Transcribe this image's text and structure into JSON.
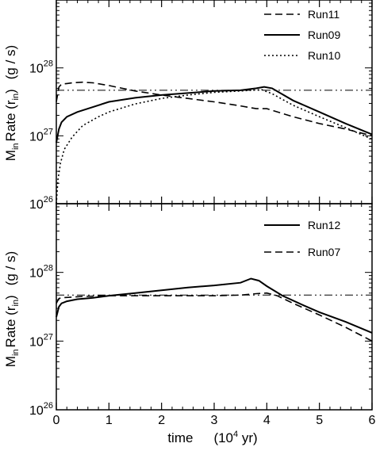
{
  "chart_data": [
    {
      "type": "line",
      "title": "",
      "xlabel": "",
      "ylabel": "M_in Rate (r_in)   (g / s)",
      "xlim": [
        0,
        6
      ],
      "ylim_log10": [
        26,
        29
      ],
      "y_scale": "log",
      "grid": false,
      "legend_position": "top-right",
      "y_ticks": [
        {
          "base": "10",
          "exp": "26"
        },
        {
          "base": "10",
          "exp": "27"
        },
        {
          "base": "10",
          "exp": "28"
        }
      ],
      "reference_line": {
        "style": "dash-dot",
        "value_log10": 27.67
      },
      "series": [
        {
          "name": "Run11",
          "style": "dashed",
          "points_log10": [
            [
              0,
              27.5
            ],
            [
              0.05,
              27.72
            ],
            [
              0.1,
              27.76
            ],
            [
              0.2,
              27.77
            ],
            [
              0.3,
              27.78
            ],
            [
              0.5,
              27.79
            ],
            [
              0.7,
              27.78
            ],
            [
              1.0,
              27.74
            ],
            [
              1.5,
              27.66
            ],
            [
              2.0,
              27.6
            ],
            [
              2.5,
              27.55
            ],
            [
              3.0,
              27.5
            ],
            [
              3.5,
              27.44
            ],
            [
              3.8,
              27.4
            ],
            [
              4.0,
              27.4
            ],
            [
              4.5,
              27.28
            ],
            [
              5.0,
              27.18
            ],
            [
              5.5,
              27.1
            ],
            [
              6.0,
              27.0
            ]
          ]
        },
        {
          "name": "Run09",
          "style": "solid",
          "points_log10": [
            [
              0,
              26.9
            ],
            [
              0.05,
              27.1
            ],
            [
              0.1,
              27.2
            ],
            [
              0.2,
              27.28
            ],
            [
              0.4,
              27.35
            ],
            [
              0.6,
              27.4
            ],
            [
              1.0,
              27.5
            ],
            [
              1.5,
              27.56
            ],
            [
              2.0,
              27.6
            ],
            [
              2.5,
              27.63
            ],
            [
              3.0,
              27.66
            ],
            [
              3.5,
              27.67
            ],
            [
              3.8,
              27.7
            ],
            [
              3.95,
              27.72
            ],
            [
              4.1,
              27.7
            ],
            [
              4.5,
              27.52
            ],
            [
              5.0,
              27.35
            ],
            [
              5.5,
              27.18
            ],
            [
              6.0,
              27.02
            ]
          ]
        },
        {
          "name": "Run10",
          "style": "dotted",
          "points_log10": [
            [
              0,
              26.0
            ],
            [
              0.03,
              26.35
            ],
            [
              0.08,
              26.6
            ],
            [
              0.15,
              26.8
            ],
            [
              0.3,
              26.98
            ],
            [
              0.5,
              27.15
            ],
            [
              0.8,
              27.28
            ],
            [
              1.0,
              27.35
            ],
            [
              1.5,
              27.47
            ],
            [
              2.0,
              27.55
            ],
            [
              2.5,
              27.6
            ],
            [
              3.0,
              27.64
            ],
            [
              3.5,
              27.66
            ],
            [
              3.9,
              27.68
            ],
            [
              4.1,
              27.62
            ],
            [
              4.5,
              27.45
            ],
            [
              5.0,
              27.28
            ],
            [
              5.5,
              27.12
            ],
            [
              6.0,
              26.95
            ]
          ]
        }
      ]
    },
    {
      "type": "line",
      "title": "",
      "xlabel": "time     (10^4 yr)",
      "ylabel": "M_in Rate (r_in)   (g / s)",
      "xlim": [
        0,
        6
      ],
      "ylim_log10": [
        26,
        29
      ],
      "y_scale": "log",
      "grid": false,
      "legend_position": "top-right",
      "x_ticks": [
        "0",
        "1",
        "2",
        "3",
        "4",
        "5",
        "6"
      ],
      "y_ticks": [
        {
          "base": "10",
          "exp": "26"
        },
        {
          "base": "10",
          "exp": "27"
        },
        {
          "base": "10",
          "exp": "28"
        }
      ],
      "reference_line": {
        "style": "dash-dot",
        "value_log10": 27.67
      },
      "series": [
        {
          "name": "Run12",
          "style": "solid",
          "points_log10": [
            [
              0,
              27.35
            ],
            [
              0.05,
              27.5
            ],
            [
              0.1,
              27.55
            ],
            [
              0.2,
              27.58
            ],
            [
              0.4,
              27.61
            ],
            [
              0.7,
              27.63
            ],
            [
              1.0,
              27.66
            ],
            [
              1.5,
              27.7
            ],
            [
              2.0,
              27.74
            ],
            [
              2.5,
              27.78
            ],
            [
              3.0,
              27.81
            ],
            [
              3.5,
              27.85
            ],
            [
              3.7,
              27.91
            ],
            [
              3.85,
              27.88
            ],
            [
              4.0,
              27.8
            ],
            [
              4.3,
              27.66
            ],
            [
              4.7,
              27.52
            ],
            [
              5.0,
              27.42
            ],
            [
              5.5,
              27.28
            ],
            [
              6.0,
              27.12
            ]
          ]
        },
        {
          "name": "Run07",
          "style": "dashed",
          "points_log10": [
            [
              0,
              27.55
            ],
            [
              0.05,
              27.62
            ],
            [
              0.1,
              27.63
            ],
            [
              0.3,
              27.64
            ],
            [
              0.5,
              27.65
            ],
            [
              1.0,
              27.66
            ],
            [
              1.5,
              27.66
            ],
            [
              2.0,
              27.66
            ],
            [
              2.5,
              27.66
            ],
            [
              3.0,
              27.66
            ],
            [
              3.5,
              27.67
            ],
            [
              3.8,
              27.69
            ],
            [
              4.0,
              27.7
            ],
            [
              4.2,
              27.66
            ],
            [
              4.5,
              27.55
            ],
            [
              5.0,
              27.38
            ],
            [
              5.5,
              27.2
            ],
            [
              6.0,
              27.0
            ]
          ]
        }
      ]
    }
  ],
  "labels": {
    "ylabel_main": "M",
    "ylabel_sub": "in",
    "ylabel_rate": "Rate (r",
    "ylabel_rsub": "in",
    "ylabel_close": ")",
    "ylabel_units": "(g / s)",
    "xlabel_main": "time",
    "xlabel_units_open": "(10",
    "xlabel_units_exp": "4",
    "xlabel_units_close": " yr)"
  }
}
